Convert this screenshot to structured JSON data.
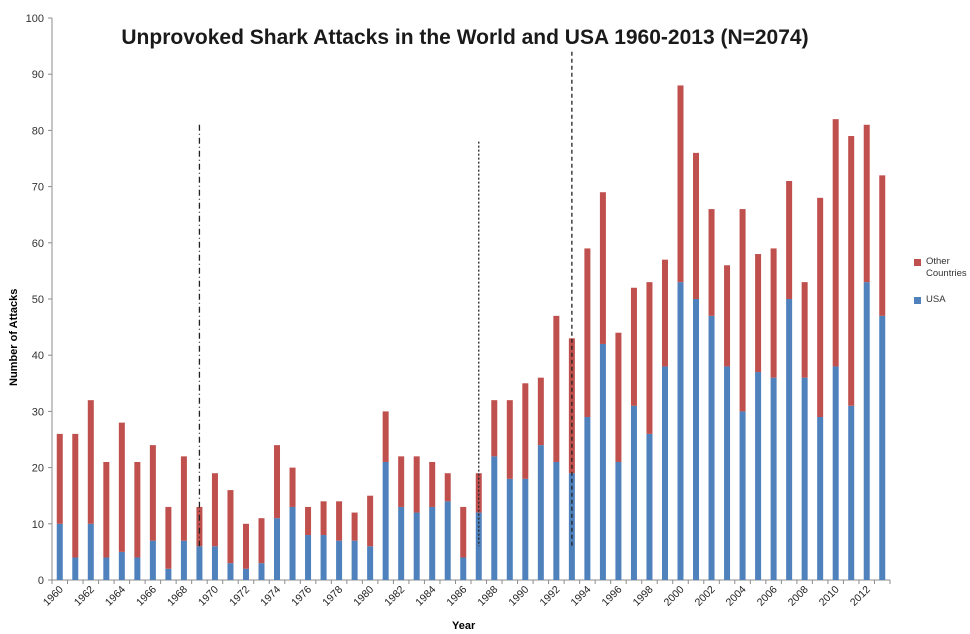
{
  "chart_data": {
    "type": "bar",
    "stacked": true,
    "title": "Unprovoked Shark Attacks in the World and USA 1960-2013 (N=2074)",
    "xlabel": "Year",
    "ylabel": "Number of Attacks",
    "ylim": [
      0,
      100
    ],
    "yticks": [
      0,
      10,
      20,
      30,
      40,
      50,
      60,
      70,
      80,
      90,
      100
    ],
    "grid": false,
    "legend_position": "right",
    "categories": [
      1960,
      1961,
      1962,
      1963,
      1964,
      1965,
      1966,
      1967,
      1968,
      1969,
      1970,
      1971,
      1972,
      1973,
      1974,
      1975,
      1976,
      1977,
      1978,
      1979,
      1980,
      1981,
      1982,
      1983,
      1984,
      1985,
      1986,
      1987,
      1988,
      1989,
      1990,
      1991,
      1992,
      1993,
      1994,
      1995,
      1996,
      1997,
      1998,
      1999,
      2000,
      2001,
      2002,
      2003,
      2004,
      2005,
      2006,
      2007,
      2008,
      2009,
      2010,
      2011,
      2012,
      2013
    ],
    "tick_labels": [
      "1960",
      "1962",
      "1964",
      "1966",
      "1968",
      "1970",
      "1972",
      "1974",
      "1976",
      "1978",
      "1980",
      "1982",
      "1984",
      "1986",
      "1988",
      "1990",
      "1992",
      "1994",
      "1996",
      "1998",
      "2000",
      "2002",
      "2004",
      "2006",
      "2008",
      "2010",
      "2012"
    ],
    "series": [
      {
        "name": "USA",
        "color": "#4f81bd",
        "values": [
          10,
          4,
          10,
          4,
          5,
          4,
          7,
          2,
          7,
          6,
          6,
          3,
          2,
          3,
          11,
          13,
          8,
          8,
          7,
          7,
          6,
          21,
          13,
          12,
          13,
          14,
          4,
          12,
          22,
          18,
          18,
          24,
          21,
          19,
          29,
          42,
          21,
          31,
          26,
          38,
          53,
          50,
          47,
          38,
          30,
          37,
          36,
          50,
          36,
          29,
          38,
          31,
          53,
          47
        ]
      },
      {
        "name": "Other Countries",
        "color": "#c0504d",
        "values": [
          16,
          22,
          22,
          17,
          23,
          17,
          17,
          11,
          15,
          7,
          13,
          13,
          8,
          8,
          13,
          7,
          5,
          6,
          7,
          5,
          9,
          9,
          9,
          10,
          8,
          5,
          9,
          7,
          10,
          14,
          17,
          12,
          26,
          24,
          30,
          27,
          23,
          21,
          27,
          19,
          35,
          26,
          19,
          18,
          36,
          21,
          23,
          21,
          17,
          39,
          44,
          48,
          28,
          25
        ]
      }
    ],
    "legend_order": [
      "Other Countries",
      "USA"
    ],
    "reference_lines": [
      {
        "x": 1969,
        "style": "dash-dot",
        "top": 81
      },
      {
        "x": 1987,
        "style": "dotted",
        "top": 78
      },
      {
        "x": 1993,
        "style": "dashed",
        "top": 94
      }
    ]
  }
}
